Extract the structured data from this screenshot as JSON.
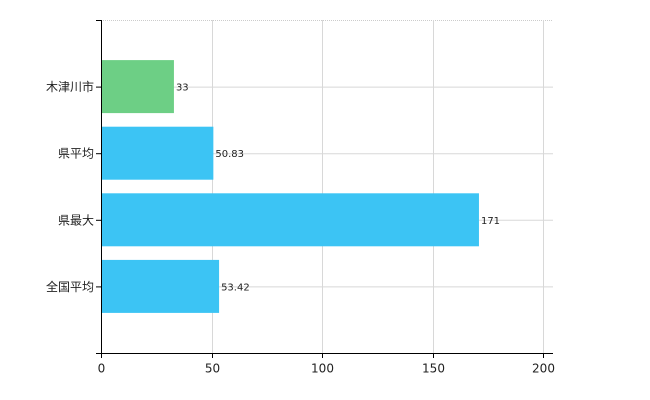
{
  "chart_data": {
    "type": "hbar",
    "categories": [
      "木津川市",
      "県平均",
      "県最大",
      "全国平均"
    ],
    "values": [
      33,
      50.83,
      171,
      53.42
    ],
    "colors": [
      "#6dcf85",
      "#3cc4f4",
      "#3cc4f4",
      "#3cc4f4"
    ],
    "xlim": [
      0,
      204.5
    ],
    "xticks": [
      0,
      50,
      100,
      150,
      200
    ],
    "grid": true
  }
}
